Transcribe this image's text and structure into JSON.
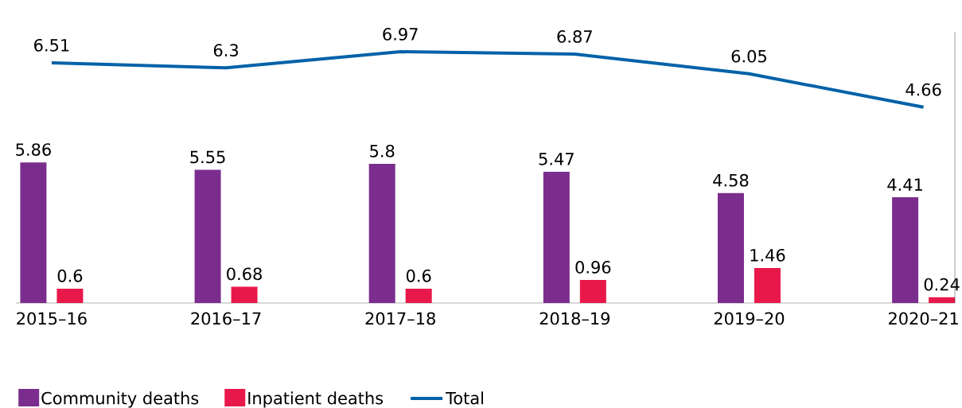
{
  "chart_data": {
    "type": "bar",
    "categories": [
      "2015–16",
      "2016–17",
      "2017–18",
      "2018–19",
      "2019–20",
      "2020–21"
    ],
    "series": [
      {
        "name": "Community deaths",
        "color": "#7b2d8e",
        "values": [
          5.86,
          5.55,
          5.8,
          5.47,
          4.58,
          4.41
        ]
      },
      {
        "name": "Inpatient deaths",
        "color": "#e8194a",
        "values": [
          0.6,
          0.68,
          0.6,
          0.96,
          1.46,
          0.24
        ]
      },
      {
        "name": "Total",
        "type": "line",
        "axis": "y2",
        "color": "#0062a8",
        "values": [
          6.51,
          6.3,
          6.97,
          6.87,
          6.05,
          4.66
        ]
      }
    ],
    "ylim": [
      0,
      11.3
    ],
    "y2lim": [
      -3.5,
      7.8
    ],
    "tick_labels": "x",
    "data_labels": true,
    "legend": "bottom",
    "marker": "none",
    "line_style": "solid"
  }
}
